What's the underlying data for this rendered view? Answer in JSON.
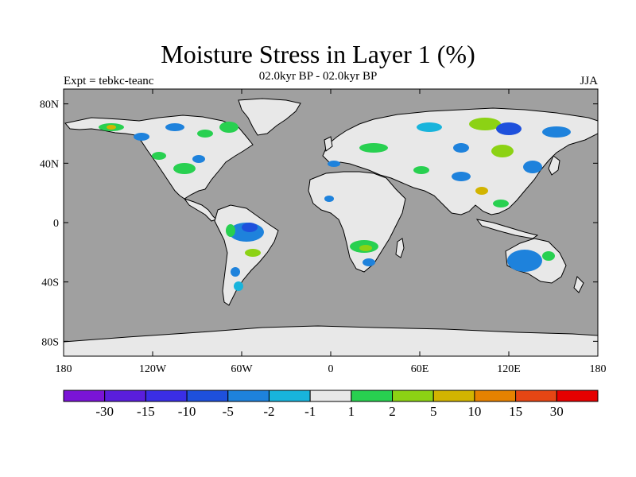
{
  "header": {
    "title": "Moisture Stress in Layer 1 (%)",
    "subtitle": "02.0kyr BP - 02.0kyr BP",
    "expt": "Expt = tebkc-teanc",
    "season": "JJA"
  },
  "map": {
    "lon_range": [
      -180,
      180
    ],
    "lat_range": [
      -90,
      90
    ],
    "ocean_color": "#a0a0a0",
    "land_color": "#e8e8e8",
    "coast_color": "#000000",
    "lat_ticks": [
      {
        "value": 80,
        "label": "80N"
      },
      {
        "value": 40,
        "label": "40N"
      },
      {
        "value": 0,
        "label": "0"
      },
      {
        "value": -40,
        "label": "40S"
      },
      {
        "value": -80,
        "label": "80S"
      }
    ],
    "lon_ticks": [
      {
        "value": -180,
        "label": "180"
      },
      {
        "value": -120,
        "label": "120W"
      },
      {
        "value": -60,
        "label": "60W"
      },
      {
        "value": 0,
        "label": "0"
      },
      {
        "value": 60,
        "label": "60E"
      },
      {
        "value": 120,
        "label": "120E"
      },
      {
        "value": 180,
        "label": "180"
      }
    ]
  },
  "colorbar": {
    "colors": [
      "#7a14d6",
      "#5a1edc",
      "#3a2ee6",
      "#1e50dc",
      "#1e82dc",
      "#18b4dc",
      "#e8e8e8",
      "#28d050",
      "#8cd214",
      "#d2b400",
      "#e68200",
      "#e64614",
      "#e60000"
    ],
    "labels": [
      "-30",
      "-15",
      "-10",
      "-5",
      "-2",
      "-1",
      "1",
      "2",
      "5",
      "10",
      "15",
      "30"
    ]
  }
}
